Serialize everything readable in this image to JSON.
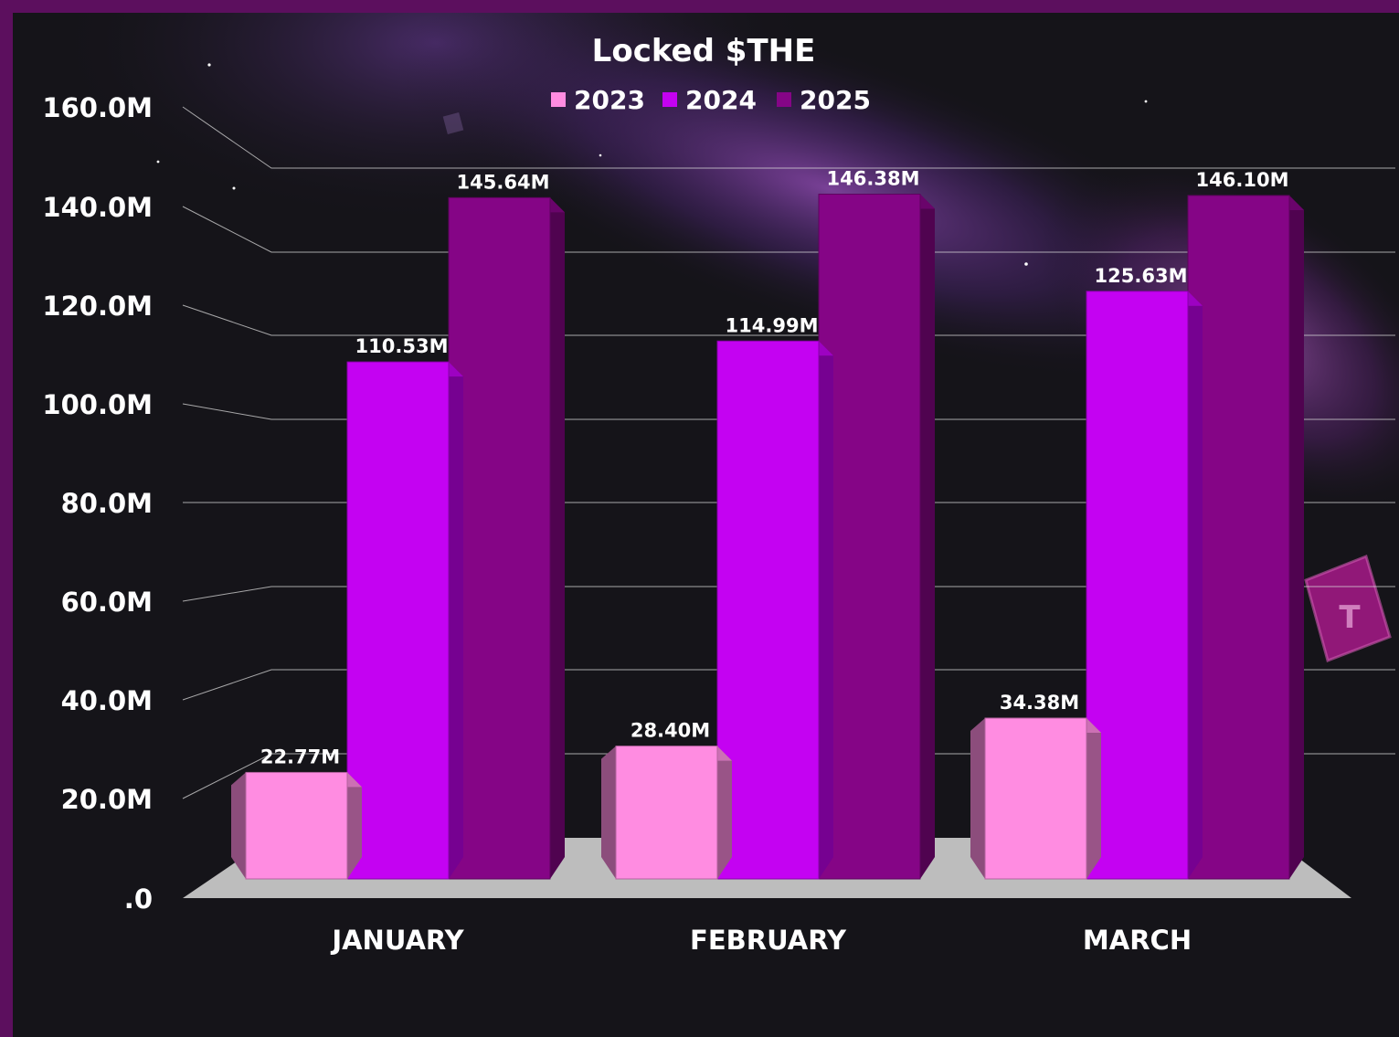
{
  "chart_data": {
    "type": "bar",
    "title": "Locked $THE",
    "categories": [
      "JANUARY",
      "FEBRUARY",
      "MARCH"
    ],
    "series": [
      {
        "name": "2023",
        "values": [
          22.77,
          28.4,
          34.38
        ],
        "labels": [
          "22.77M",
          "28.40M",
          "34.38M"
        ],
        "color": "#ff8ce1"
      },
      {
        "name": "2024",
        "values": [
          110.53,
          114.99,
          125.63
        ],
        "labels": [
          "110.53M",
          "114.99M",
          "125.63M"
        ],
        "color": "#c402f2"
      },
      {
        "name": "2025",
        "values": [
          145.64,
          146.38,
          146.1
        ],
        "labels": [
          "145.64M",
          "146.38M",
          "146.10M"
        ],
        "color": "#850586"
      }
    ],
    "y_ticks": [
      ".0",
      "20.0M",
      "40.0M",
      "60.0M",
      "80.0M",
      "100.0M",
      "120.0M",
      "140.0M",
      "160.0M"
    ],
    "ylim": [
      0,
      160
    ],
    "legend_position": "top-center",
    "grid": true,
    "colors": {
      "background": "#151419",
      "frame": "#5c0f5e",
      "floor": "#bdbdbd",
      "gridline": "#d9d9d9",
      "text": "#ffffff"
    }
  }
}
